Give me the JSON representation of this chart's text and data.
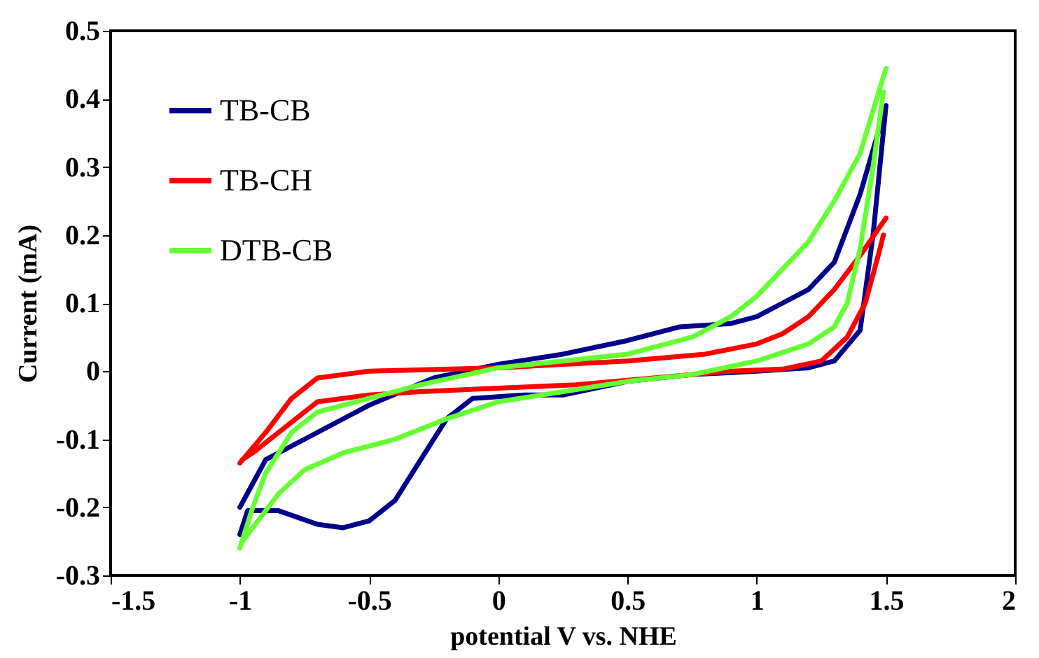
{
  "chart_data": {
    "type": "line",
    "xlabel": "potential V vs. NHE",
    "ylabel": "Current (mA)",
    "xlim": [
      -1.5,
      2
    ],
    "ylim": [
      -0.3,
      0.5
    ],
    "xticks": [
      -1.5,
      -1,
      -0.5,
      0,
      0.5,
      1,
      1.5,
      2
    ],
    "yticks": [
      -0.3,
      -0.2,
      -0.1,
      0,
      0.1,
      0.2,
      0.3,
      0.4,
      0.5
    ],
    "grid": false,
    "legend": "top left",
    "marker": "none",
    "line_style": "solid",
    "series": [
      {
        "name": "TB-CB",
        "color": "#00008b",
        "x": [
          -1,
          -0.9,
          -0.75,
          -0.5,
          -0.25,
          0,
          0.25,
          0.5,
          0.7,
          0.9,
          1,
          1.1,
          1.2,
          1.3,
          1.4,
          1.5
        ],
        "values": [
          -0.2,
          -0.13,
          -0.1,
          -0.05,
          -0.01,
          0.01,
          0.025,
          0.045,
          0.065,
          0.07,
          0.08,
          0.1,
          0.12,
          0.16,
          0.26,
          0.39
        ]
      },
      {
        "color": "#00008b",
        "x": [
          -1,
          -0.97,
          -0.85,
          -0.7,
          -0.6,
          -0.5,
          -0.4,
          -0.3,
          -0.2,
          -0.1,
          0.1,
          0.25,
          0.5,
          0.75,
          1,
          1.2,
          1.3,
          1.4,
          1.45,
          1.5
        ],
        "values": [
          -0.24,
          -0.205,
          -0.205,
          -0.225,
          -0.23,
          -0.22,
          -0.19,
          -0.13,
          -0.07,
          -0.04,
          -0.035,
          -0.035,
          -0.015,
          -0.005,
          0,
          0.005,
          0.015,
          0.06,
          0.2,
          0.39
        ]
      },
      {
        "name": "TB-CH",
        "color": "#ff0000",
        "x": [
          -1,
          -0.9,
          -0.8,
          -0.7,
          -0.5,
          0,
          0.5,
          0.8,
          1,
          1.1,
          1.2,
          1.3,
          1.4,
          1.5
        ],
        "values": [
          -0.135,
          -0.09,
          -0.04,
          -0.01,
          0,
          0.005,
          0.015,
          0.025,
          0.04,
          0.055,
          0.08,
          0.12,
          0.17,
          0.225
        ]
      },
      {
        "color": "#ff0000",
        "x": [
          -0.99,
          -0.95,
          -0.85,
          -0.7,
          -0.5,
          -0.3,
          0,
          0.3,
          0.6,
          0.9,
          1.1,
          1.25,
          1.35,
          1.42,
          1.47,
          1.49
        ],
        "values": [
          -0.13,
          -0.12,
          -0.09,
          -0.045,
          -0.035,
          -0.03,
          -0.025,
          -0.02,
          -0.01,
          0,
          0.003,
          0.015,
          0.05,
          0.1,
          0.17,
          0.2
        ]
      },
      {
        "name": "DTB-CB",
        "color": "#66ff33",
        "x": [
          -1,
          -0.95,
          -0.9,
          -0.8,
          -0.7,
          -0.5,
          -0.3,
          0,
          0.25,
          0.5,
          0.75,
          0.9,
          1,
          1.1,
          1.2,
          1.3,
          1.4,
          1.5
        ],
        "values": [
          -0.26,
          -0.2,
          -0.15,
          -0.09,
          -0.06,
          -0.04,
          -0.02,
          0.005,
          0.015,
          0.025,
          0.05,
          0.08,
          0.11,
          0.15,
          0.19,
          0.25,
          0.32,
          0.445
        ]
      },
      {
        "color": "#66ff33",
        "x": [
          -0.99,
          -0.95,
          -0.85,
          -0.75,
          -0.6,
          -0.4,
          -0.2,
          0,
          0.25,
          0.5,
          0.75,
          1,
          1.2,
          1.3,
          1.35,
          1.4,
          1.45,
          1.49
        ],
        "values": [
          -0.25,
          -0.23,
          -0.18,
          -0.145,
          -0.12,
          -0.1,
          -0.07,
          -0.045,
          -0.03,
          -0.015,
          -0.005,
          0.015,
          0.04,
          0.065,
          0.1,
          0.18,
          0.3,
          0.41
        ]
      }
    ]
  }
}
